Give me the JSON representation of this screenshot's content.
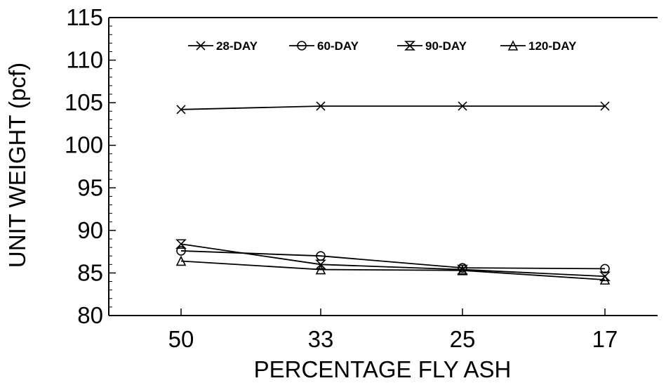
{
  "chart_data": {
    "type": "line",
    "title": "",
    "xlabel": "PERCENTAGE FLY ASH",
    "ylabel": "UNIT WEIGHT (pcf)",
    "categories": [
      "50",
      "33",
      "25",
      "17"
    ],
    "ylim": [
      80,
      115
    ],
    "yticks": [
      "80",
      "85",
      "90",
      "95",
      "100",
      "105",
      "110",
      "115"
    ],
    "grid": false,
    "legend_position": "top",
    "series": [
      {
        "name": "28-DAY",
        "marker": "x",
        "values": [
          104.2,
          104.6,
          104.6,
          104.6
        ]
      },
      {
        "name": "60-DAY",
        "marker": "circle",
        "values": [
          87.6,
          87.0,
          85.6,
          85.5
        ]
      },
      {
        "name": "90-DAY",
        "marker": "hourglass",
        "values": [
          88.4,
          86.0,
          85.4,
          84.6
        ]
      },
      {
        "name": "120-DAY",
        "marker": "triangle",
        "values": [
          86.4,
          85.4,
          85.3,
          84.2
        ]
      }
    ],
    "colors": {
      "line": "#000000",
      "background": "#ffffff"
    }
  }
}
